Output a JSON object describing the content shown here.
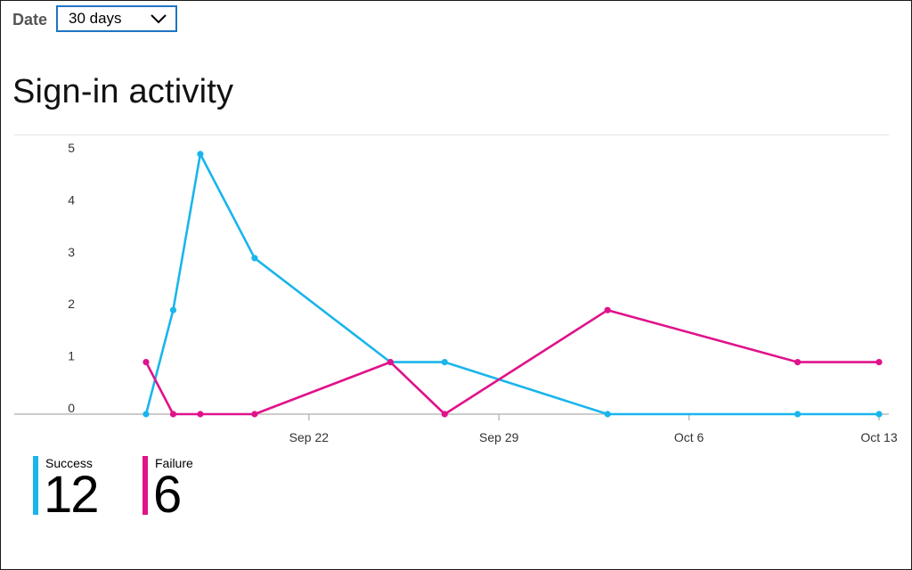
{
  "filter": {
    "label": "Date",
    "selected": "30 days"
  },
  "title": "Sign-in activity",
  "colors": {
    "success": "#1ab5ec",
    "failure": "#e0128b",
    "axis": "#bbbbbb",
    "divider": "#e3e3e3"
  },
  "icons": {
    "dropdown": "chevron-down-icon"
  },
  "legend": [
    {
      "name": "Success",
      "value": "12",
      "color": "#1ab5ec"
    },
    {
      "name": "Failure",
      "value": "6",
      "color": "#e0128b"
    }
  ],
  "chart_data": {
    "type": "line",
    "title": "Sign-in activity",
    "xlabel": "",
    "ylabel": "",
    "x_range": [
      "2023-09-14",
      "2023-10-13"
    ],
    "x_ticks": [
      {
        "date": "2023-09-22",
        "label": "Sep 22"
      },
      {
        "date": "2023-09-29",
        "label": "Sep 29"
      },
      {
        "date": "2023-10-06",
        "label": "Oct 6"
      },
      {
        "date": "2023-10-13",
        "label": "Oct 13"
      }
    ],
    "ylim": [
      0,
      5
    ],
    "y_ticks": [
      0,
      1,
      2,
      3,
      4,
      5
    ],
    "grid": false,
    "legend_position": "bottom-left",
    "series": [
      {
        "name": "Success",
        "color": "#1ab5ec",
        "points": [
          {
            "x": "2023-09-16",
            "y": 0
          },
          {
            "x": "2023-09-17",
            "y": 2
          },
          {
            "x": "2023-09-18",
            "y": 5
          },
          {
            "x": "2023-09-20",
            "y": 3
          },
          {
            "x": "2023-09-25",
            "y": 1
          },
          {
            "x": "2023-09-27",
            "y": 1
          },
          {
            "x": "2023-10-03",
            "y": 0
          },
          {
            "x": "2023-10-10",
            "y": 0
          },
          {
            "x": "2023-10-13",
            "y": 0
          }
        ]
      },
      {
        "name": "Failure",
        "color": "#e0128b",
        "points": [
          {
            "x": "2023-09-16",
            "y": 1
          },
          {
            "x": "2023-09-17",
            "y": 0
          },
          {
            "x": "2023-09-18",
            "y": 0
          },
          {
            "x": "2023-09-20",
            "y": 0
          },
          {
            "x": "2023-09-25",
            "y": 1
          },
          {
            "x": "2023-09-27",
            "y": 0
          },
          {
            "x": "2023-10-03",
            "y": 2
          },
          {
            "x": "2023-10-10",
            "y": 1
          },
          {
            "x": "2023-10-13",
            "y": 1
          }
        ]
      }
    ]
  }
}
